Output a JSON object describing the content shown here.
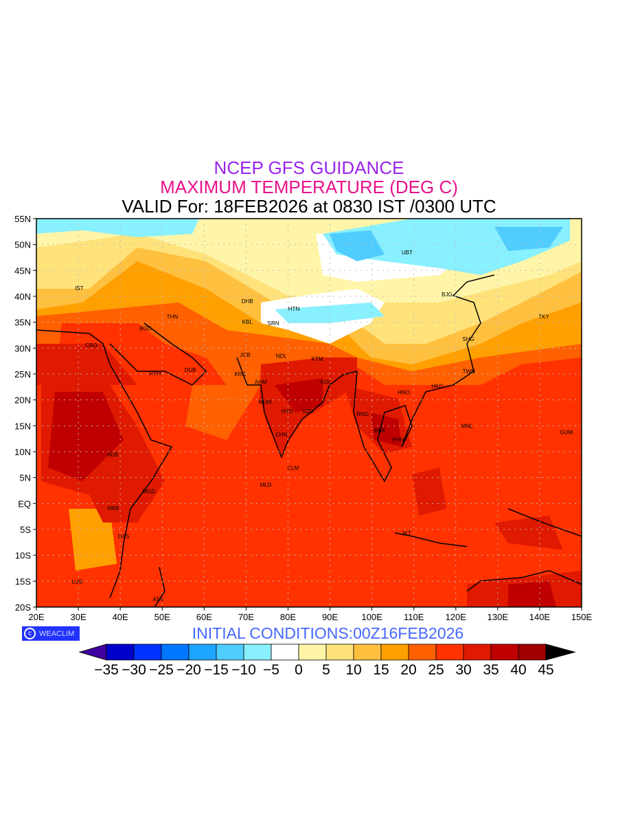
{
  "titles": {
    "line1": "NCEP GFS GUIDANCE",
    "line2": "MAXIMUM TEMPERATURE (DEG C)",
    "line3": "VALID For: 18FEB2026 at 0830 IST /0300 UTC"
  },
  "initial_conditions": "INITIAL  CONDITIONS:00Z16FEB2026",
  "logo": {
    "text": "WEACLIM",
    "icon": "copyright-icon"
  },
  "map": {
    "lon_range": [
      20,
      150
    ],
    "lat_range": [
      -20,
      55
    ],
    "lon_ticks": [
      {
        "v": 20,
        "label": "20E"
      },
      {
        "v": 30,
        "label": "30E"
      },
      {
        "v": 40,
        "label": "40E"
      },
      {
        "v": 50,
        "label": "50E"
      },
      {
        "v": 60,
        "label": "60E"
      },
      {
        "v": 70,
        "label": "70E"
      },
      {
        "v": 80,
        "label": "80E"
      },
      {
        "v": 90,
        "label": "90E"
      },
      {
        "v": 100,
        "label": "100E"
      },
      {
        "v": 110,
        "label": "110E"
      },
      {
        "v": 120,
        "label": "120E"
      },
      {
        "v": 130,
        "label": "130E"
      },
      {
        "v": 140,
        "label": "140E"
      },
      {
        "v": 150,
        "label": "150E"
      }
    ],
    "lat_ticks": [
      {
        "v": -20,
        "label": "20S"
      },
      {
        "v": -15,
        "label": "15S"
      },
      {
        "v": -10,
        "label": "10S"
      },
      {
        "v": -5,
        "label": "5S"
      },
      {
        "v": 0,
        "label": "EQ"
      },
      {
        "v": 5,
        "label": "5N"
      },
      {
        "v": 10,
        "label": "10N"
      },
      {
        "v": 15,
        "label": "15N"
      },
      {
        "v": 20,
        "label": "20N"
      },
      {
        "v": 25,
        "label": "25N"
      },
      {
        "v": 30,
        "label": "30N"
      },
      {
        "v": 35,
        "label": "35N"
      },
      {
        "v": 40,
        "label": "40N"
      },
      {
        "v": 45,
        "label": "45N"
      },
      {
        "v": 50,
        "label": "50N"
      },
      {
        "v": 55,
        "label": "55N"
      }
    ],
    "cities": [
      {
        "code": "IST",
        "lon": 30.2,
        "lat": 41.6
      },
      {
        "code": "THN",
        "lon": 52.4,
        "lat": 36.1
      },
      {
        "code": "BGD",
        "lon": 46.0,
        "lat": 33.8
      },
      {
        "code": "CRO",
        "lon": 33.1,
        "lat": 30.6
      },
      {
        "code": "RYH",
        "lon": 48.3,
        "lat": 25.1
      },
      {
        "code": "DUB",
        "lon": 56.7,
        "lat": 25.8
      },
      {
        "code": "DHB",
        "lon": 70.3,
        "lat": 39.1
      },
      {
        "code": "HTN",
        "lon": 81.4,
        "lat": 37.6
      },
      {
        "code": "KBL",
        "lon": 70.3,
        "lat": 35.1
      },
      {
        "code": "SRN",
        "lon": 76.5,
        "lat": 34.8
      },
      {
        "code": "JCB",
        "lon": 69.8,
        "lat": 28.7
      },
      {
        "code": "KRC",
        "lon": 68.6,
        "lat": 25.0
      },
      {
        "code": "AHM",
        "lon": 73.5,
        "lat": 23.5
      },
      {
        "code": "NDL",
        "lon": 78.4,
        "lat": 28.5
      },
      {
        "code": "KTM",
        "lon": 87.0,
        "lat": 27.9
      },
      {
        "code": "MUM",
        "lon": 74.5,
        "lat": 19.6
      },
      {
        "code": "HYD",
        "lon": 79.8,
        "lat": 17.8
      },
      {
        "code": "VZG",
        "lon": 84.7,
        "lat": 17.8
      },
      {
        "code": "KOL",
        "lon": 89.1,
        "lat": 23.5
      },
      {
        "code": "CHN",
        "lon": 78.4,
        "lat": 13.3
      },
      {
        "code": "CLM",
        "lon": 81.2,
        "lat": 6.9
      },
      {
        "code": "MLD",
        "lon": 74.7,
        "lat": 3.6
      },
      {
        "code": "UBT",
        "lon": 108.4,
        "lat": 48.5
      },
      {
        "code": "BJG",
        "lon": 117.9,
        "lat": 40.4
      },
      {
        "code": "SHG",
        "lon": 123.0,
        "lat": 31.8
      },
      {
        "code": "TKY",
        "lon": 141.0,
        "lat": 36.1
      },
      {
        "code": "TWN",
        "lon": 123.1,
        "lat": 25.5
      },
      {
        "code": "HKG",
        "lon": 115.6,
        "lat": 22.7
      },
      {
        "code": "HNO",
        "lon": 107.6,
        "lat": 21.5
      },
      {
        "code": "RNG",
        "lon": 97.8,
        "lat": 17.3
      },
      {
        "code": "BNK",
        "lon": 101.9,
        "lat": 14.1
      },
      {
        "code": "PHN",
        "lon": 106.3,
        "lat": 12.3
      },
      {
        "code": "MNL",
        "lon": 122.7,
        "lat": 15.0
      },
      {
        "code": "GUM",
        "lon": 146.4,
        "lat": 13.8
      },
      {
        "code": "JKT",
        "lon": 108.2,
        "lat": -5.7
      },
      {
        "code": "ADB",
        "lon": 38.2,
        "lat": 9.5
      },
      {
        "code": "MGD",
        "lon": 46.8,
        "lat": 2.4
      },
      {
        "code": "NRB",
        "lon": 38.3,
        "lat": -0.9
      },
      {
        "code": "DAS",
        "lon": 40.8,
        "lat": -6.3
      },
      {
        "code": "LUS",
        "lon": 29.7,
        "lat": -15.1
      },
      {
        "code": "ATN",
        "lon": 49.0,
        "lat": -18.5
      }
    ]
  },
  "colorbar": {
    "under_color": "#4000a0",
    "over_color": "#000000",
    "colors": [
      "#0000cc",
      "#0033ff",
      "#0077ff",
      "#1ea5ff",
      "#50cdff",
      "#88f0ff",
      "#ffffff",
      "#fff5a8",
      "#ffe27a",
      "#ffc040",
      "#ffa000",
      "#ff6000",
      "#ff3200",
      "#e01a00",
      "#c00000",
      "#a00000"
    ],
    "labels": [
      "−35",
      "−30",
      "−25",
      "−20",
      "−15",
      "−10",
      "−5",
      "0",
      "5",
      "10",
      "15",
      "20",
      "25",
      "30",
      "35",
      "40",
      "45"
    ]
  }
}
